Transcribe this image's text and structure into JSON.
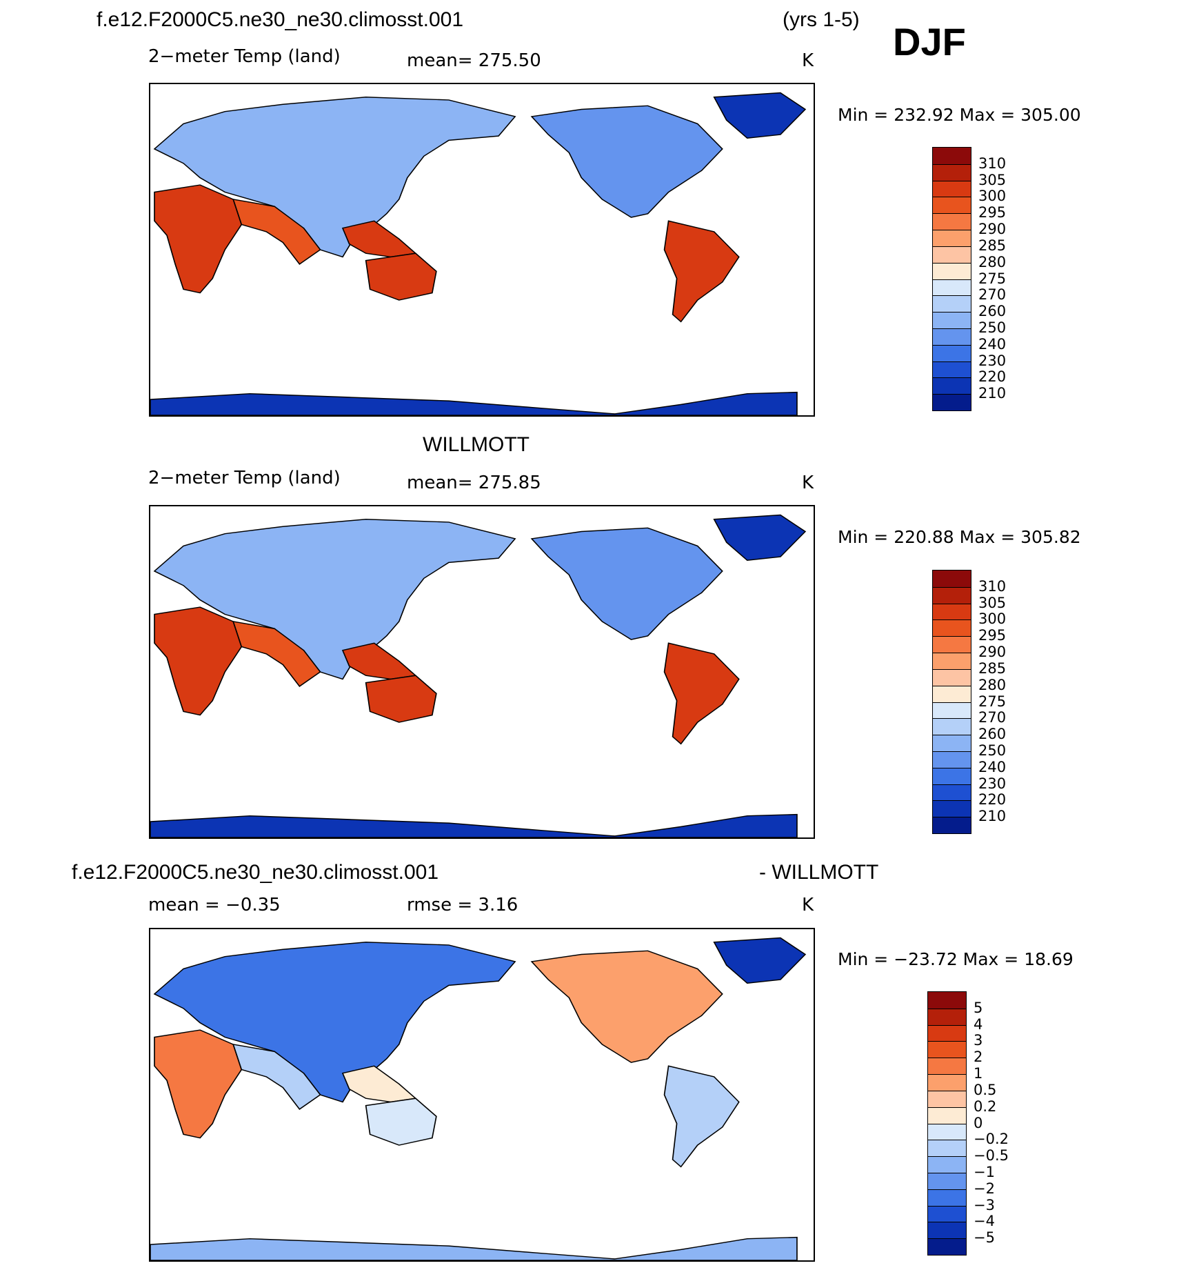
{
  "header": {
    "case_name": "f.e12.F2000C5.ne30_ne30.climosst.001",
    "years": "(yrs 1-5)",
    "season": "DJF"
  },
  "panels": [
    {
      "id": "model",
      "title": "",
      "variable": "2−meter Temp (land)",
      "mean_text": "mean=  275.50",
      "units": "K",
      "min_max": "Min  =  232.92  Max  =  305.00",
      "scale": "temp"
    },
    {
      "id": "obs",
      "title": "WILLMOTT",
      "variable": "2−meter Temp (land)",
      "mean_text": "mean=  275.85",
      "units": "K",
      "min_max": "Min  =  220.88  Max  =  305.82",
      "scale": "temp"
    },
    {
      "id": "diff",
      "title_left": "f.e12.F2000C5.ne30_ne30.climosst.001",
      "title_right": "- WILLMOTT",
      "mean_text": "mean  =    −0.35",
      "rmse_text": "rmse  =     3.16",
      "units": "K",
      "min_max": "Min  =  −23.72  Max  =    18.69",
      "scale": "diff"
    }
  ],
  "colorbars": {
    "temp": {
      "labels": [
        "310",
        "305",
        "300",
        "295",
        "290",
        "285",
        "280",
        "275",
        "270",
        "260",
        "250",
        "240",
        "230",
        "220",
        "210"
      ],
      "colors": [
        "#8c0a0a",
        "#b4200a",
        "#d83a12",
        "#e8541e",
        "#f57842",
        "#fca06c",
        "#fdc4a4",
        "#fdebd4",
        "#d8e8fa",
        "#b4d0f8",
        "#8cb4f4",
        "#6494ee",
        "#3c74e6",
        "#1e50d2",
        "#0c34b4",
        "#041c8c"
      ]
    },
    "diff": {
      "labels": [
        "5",
        "4",
        "3",
        "2",
        "1",
        "0.5",
        "0.2",
        "0",
        "−0.2",
        "−0.5",
        "−1",
        "−2",
        "−3",
        "−4",
        "−5"
      ],
      "colors": [
        "#8c0a0a",
        "#b4200a",
        "#d83a12",
        "#e8541e",
        "#f57842",
        "#fca06c",
        "#fdc4a4",
        "#fdebd4",
        "#d8e8fa",
        "#b4d0f8",
        "#8cb4f4",
        "#6494ee",
        "#3c74e6",
        "#1e50d2",
        "#0c34b4",
        "#041c8c"
      ]
    }
  }
}
